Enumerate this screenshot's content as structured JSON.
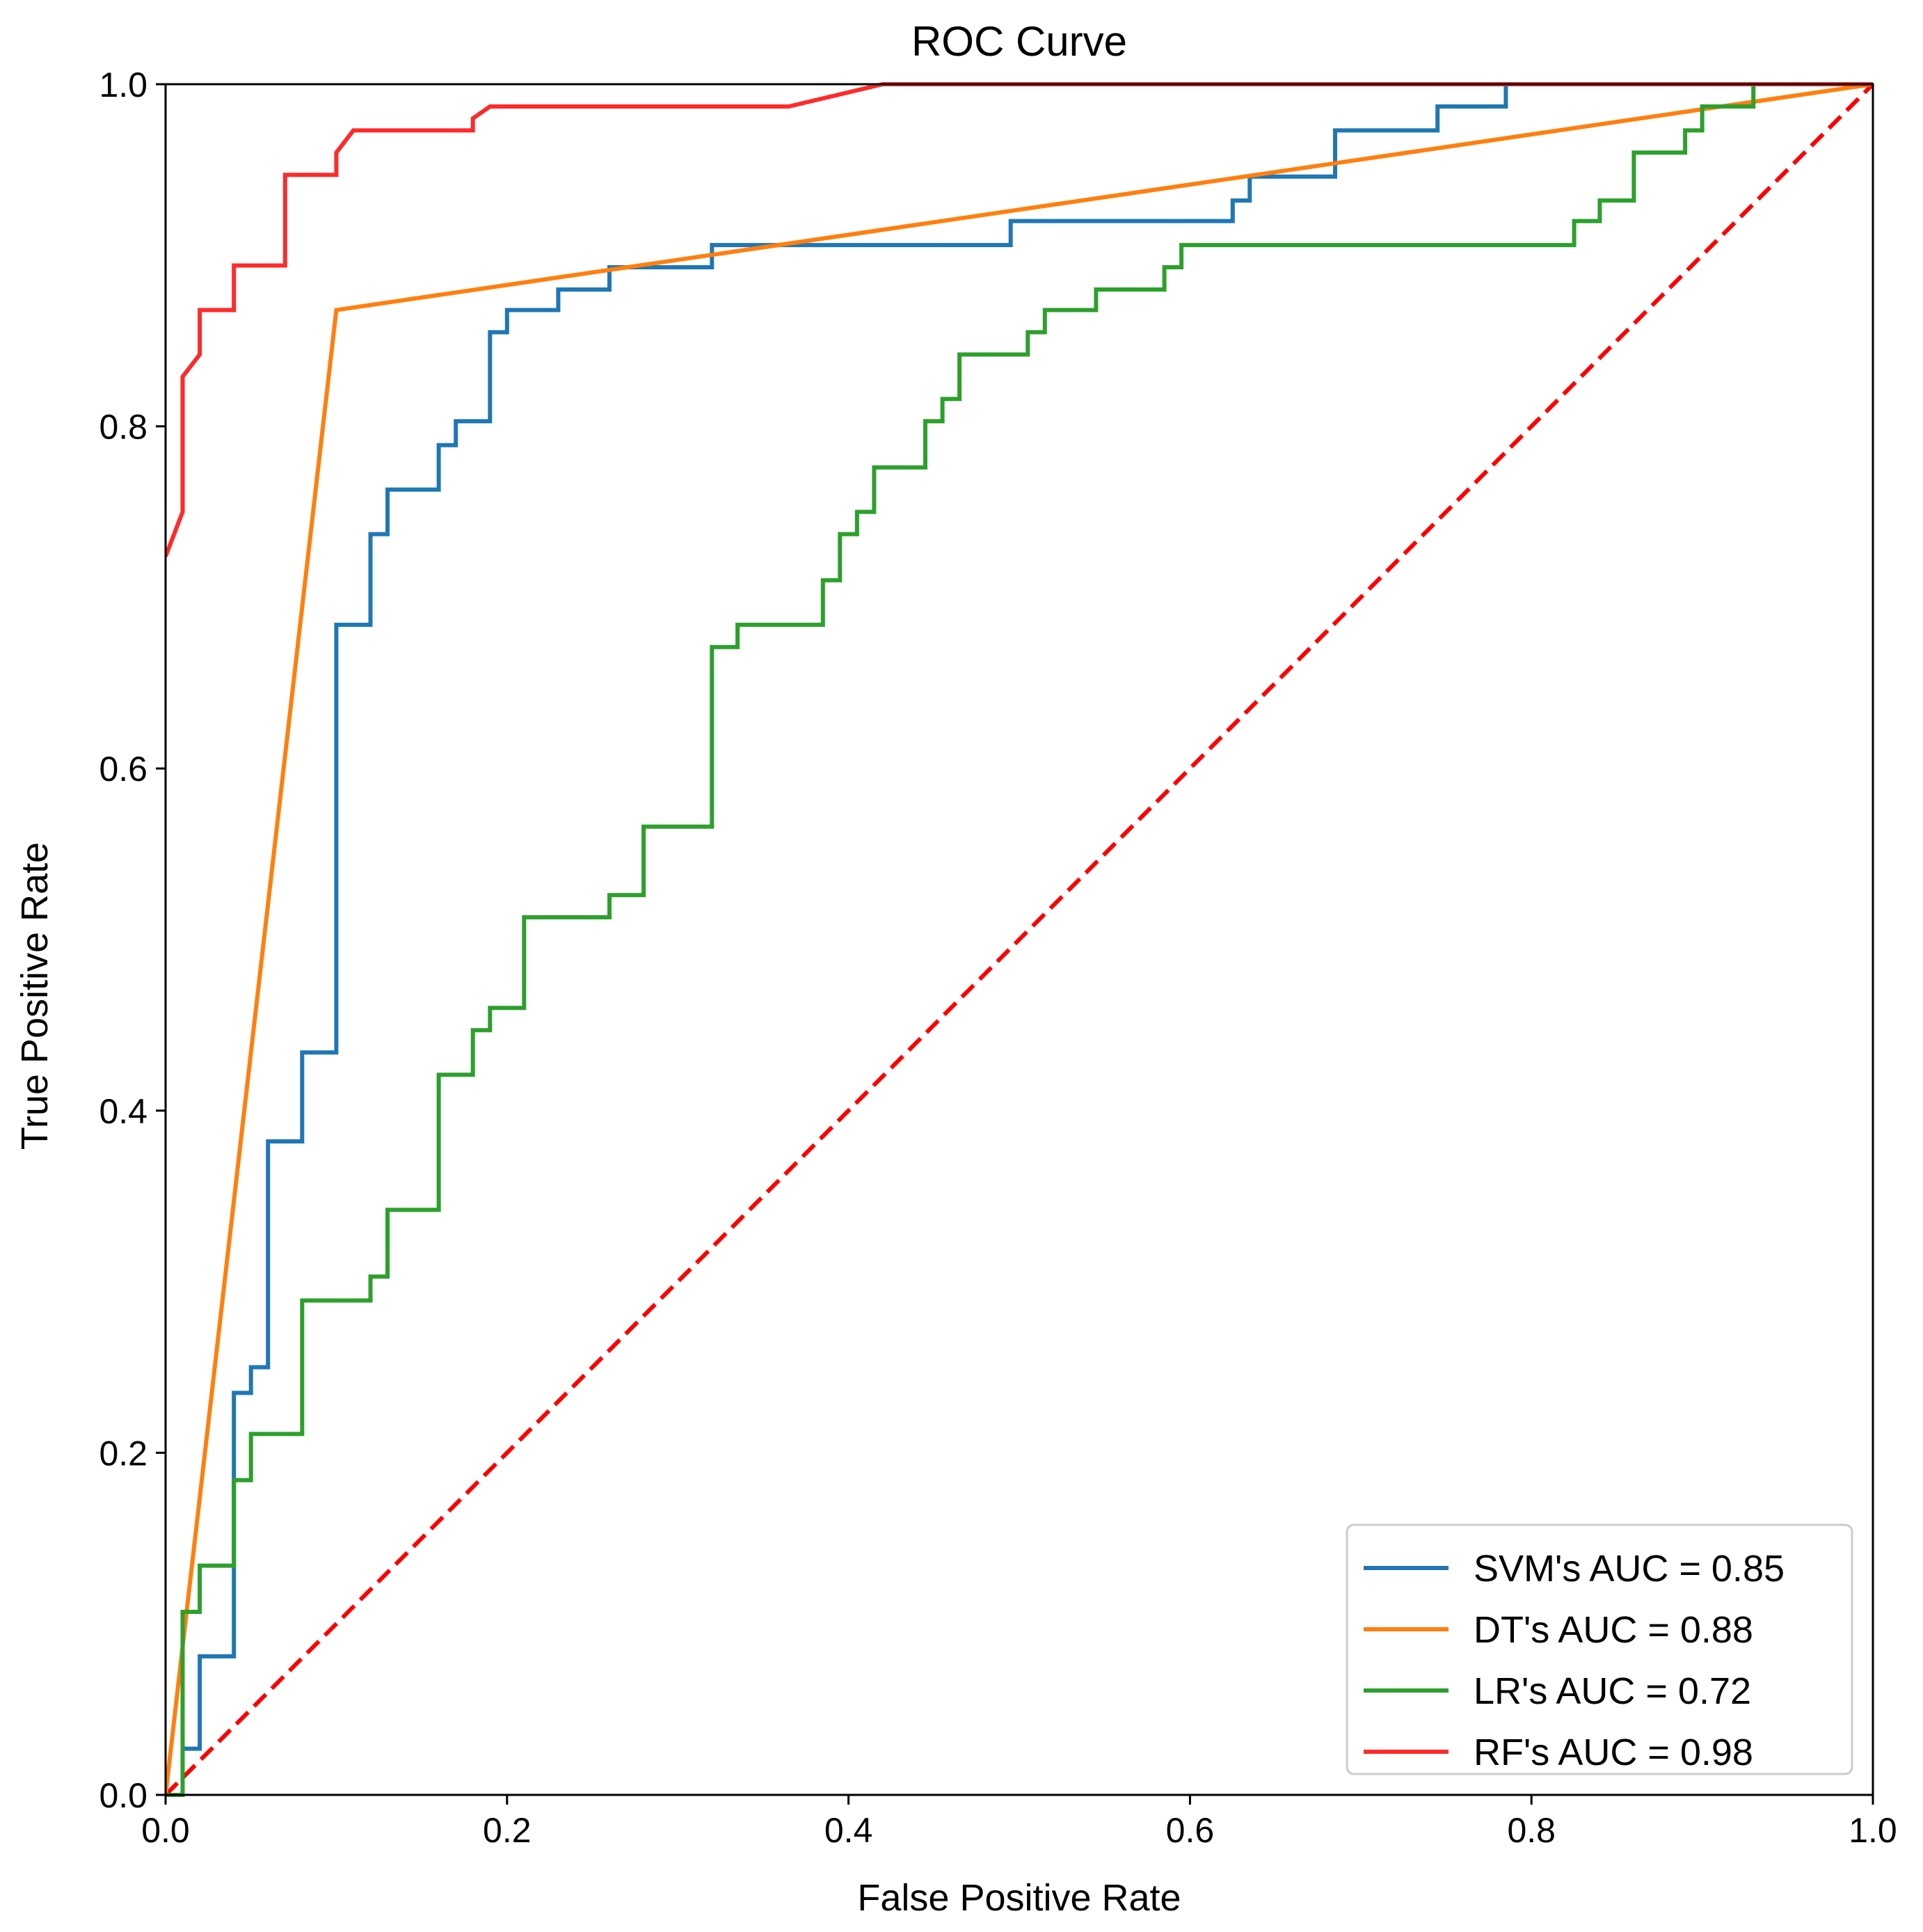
{
  "chart_data": {
    "type": "line",
    "title": "ROC Curve",
    "xlabel": "False Positive Rate",
    "ylabel": "True Positive Rate",
    "xlim": [
      0.0,
      1.0
    ],
    "ylim": [
      0.0,
      1.0
    ],
    "x_ticks": [
      0.0,
      0.2,
      0.4,
      0.6,
      0.8,
      1.0
    ],
    "y_ticks": [
      0.0,
      0.2,
      0.4,
      0.6,
      0.8,
      1.0
    ],
    "x_tick_labels": [
      "0.0",
      "0.2",
      "0.4",
      "0.6",
      "0.8",
      "1.0"
    ],
    "y_tick_labels": [
      "0.0",
      "0.2",
      "0.4",
      "0.6",
      "0.8",
      "1.0"
    ],
    "grid": false,
    "legend_position": "lower-right",
    "reference_line": {
      "style": "dashed",
      "color": "#ff0000",
      "x": [
        0.0,
        1.0
      ],
      "y": [
        0.0,
        1.0
      ]
    },
    "series": [
      {
        "name": "SVM's  AUC = 0.85",
        "color": "#1f77b4",
        "x": [
          0.0,
          0.01,
          0.01,
          0.02,
          0.02,
          0.04,
          0.04,
          0.05,
          0.05,
          0.06,
          0.06,
          0.08,
          0.08,
          0.1,
          0.1,
          0.12,
          0.12,
          0.13,
          0.13,
          0.16,
          0.16,
          0.17,
          0.17,
          0.19,
          0.19,
          0.2,
          0.2,
          0.23,
          0.23,
          0.26,
          0.26,
          0.32,
          0.32,
          0.495,
          0.495,
          0.625,
          0.625,
          0.635,
          0.635,
          0.685,
          0.685,
          0.745,
          0.745,
          0.785,
          0.785,
          1.0
        ],
        "y": [
          0.0,
          0.0,
          0.027,
          0.027,
          0.081,
          0.081,
          0.235,
          0.235,
          0.25,
          0.25,
          0.382,
          0.382,
          0.434,
          0.434,
          0.684,
          0.684,
          0.737,
          0.737,
          0.763,
          0.763,
          0.789,
          0.789,
          0.803,
          0.803,
          0.855,
          0.855,
          0.868,
          0.868,
          0.88,
          0.88,
          0.893,
          0.893,
          0.906,
          0.906,
          0.92,
          0.92,
          0.932,
          0.932,
          0.946,
          0.946,
          0.973,
          0.973,
          0.987,
          0.987,
          1.0,
          1.0
        ]
      },
      {
        "name": "DT's  AUC = 0.88",
        "color": "#ff7f0e",
        "x": [
          0.0,
          0.1,
          1.0
        ],
        "y": [
          0.0,
          0.868,
          1.0
        ]
      },
      {
        "name": "LR's  AUC = 0.72",
        "color": "#2ca02c",
        "x": [
          0.0,
          0.01,
          0.01,
          0.02,
          0.02,
          0.04,
          0.04,
          0.05,
          0.05,
          0.08,
          0.08,
          0.12,
          0.12,
          0.13,
          0.13,
          0.16,
          0.16,
          0.18,
          0.18,
          0.19,
          0.19,
          0.21,
          0.21,
          0.26,
          0.26,
          0.28,
          0.28,
          0.32,
          0.32,
          0.335,
          0.335,
          0.385,
          0.385,
          0.395,
          0.395,
          0.405,
          0.405,
          0.415,
          0.415,
          0.445,
          0.445,
          0.455,
          0.455,
          0.465,
          0.465,
          0.505,
          0.505,
          0.515,
          0.515,
          0.545,
          0.545,
          0.585,
          0.585,
          0.595,
          0.595,
          0.825,
          0.825,
          0.84,
          0.84,
          0.86,
          0.86,
          0.89,
          0.89,
          0.9,
          0.9,
          0.93,
          0.93,
          1.0
        ],
        "y": [
          0.0,
          0.0,
          0.107,
          0.107,
          0.134,
          0.134,
          0.184,
          0.184,
          0.211,
          0.211,
          0.289,
          0.289,
          0.303,
          0.303,
          0.342,
          0.342,
          0.421,
          0.421,
          0.447,
          0.447,
          0.46,
          0.46,
          0.513,
          0.513,
          0.526,
          0.526,
          0.566,
          0.566,
          0.671,
          0.671,
          0.684,
          0.684,
          0.71,
          0.71,
          0.737,
          0.737,
          0.75,
          0.75,
          0.776,
          0.776,
          0.803,
          0.803,
          0.816,
          0.816,
          0.842,
          0.842,
          0.855,
          0.855,
          0.868,
          0.868,
          0.88,
          0.88,
          0.893,
          0.893,
          0.906,
          0.906,
          0.92,
          0.92,
          0.932,
          0.932,
          0.96,
          0.96,
          0.973,
          0.973,
          0.987,
          0.987,
          1.0,
          1.0
        ]
      },
      {
        "name": "RF's  AUC = 0.98",
        "color": "#ff2a2a",
        "x": [
          0.0,
          0.01,
          0.01,
          0.02,
          0.02,
          0.04,
          0.04,
          0.07,
          0.07,
          0.1,
          0.1,
          0.11,
          0.11,
          0.18,
          0.18,
          0.19,
          0.19,
          0.365,
          0.42,
          1.0
        ],
        "y": [
          0.724,
          0.75,
          0.829,
          0.842,
          0.868,
          0.868,
          0.894,
          0.894,
          0.947,
          0.947,
          0.96,
          0.973,
          0.973,
          0.973,
          0.98,
          0.987,
          0.987,
          0.987,
          1.0,
          1.0
        ]
      }
    ]
  }
}
